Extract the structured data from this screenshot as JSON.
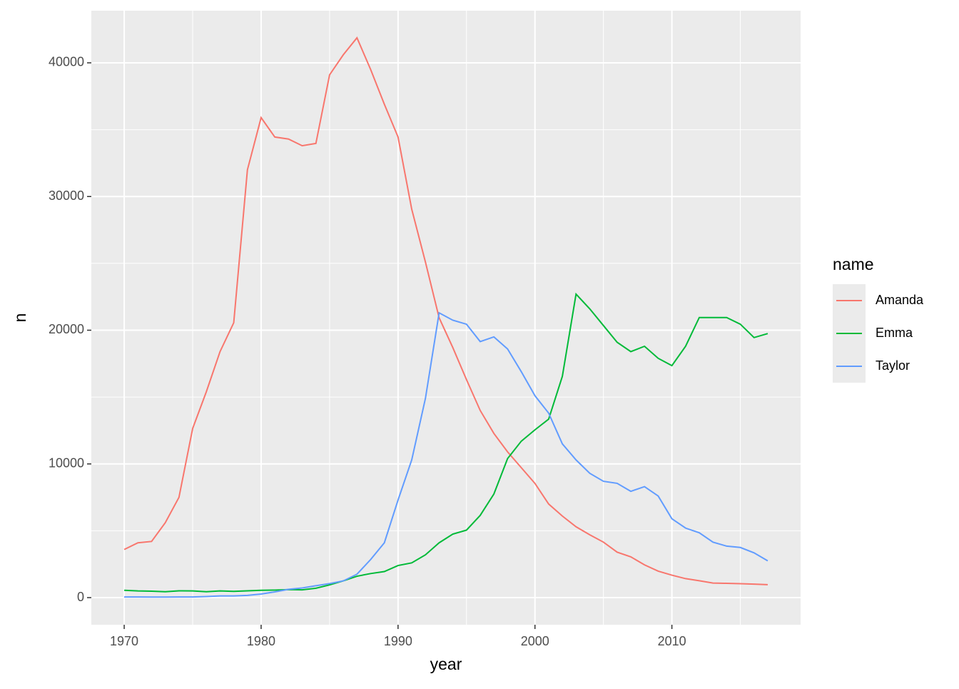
{
  "chart_data": {
    "type": "line",
    "x_label": "year",
    "y_label": "n",
    "legend_title": "name",
    "x": [
      1970,
      1971,
      1972,
      1973,
      1974,
      1975,
      1976,
      1977,
      1978,
      1979,
      1980,
      1981,
      1982,
      1983,
      1984,
      1985,
      1986,
      1987,
      1988,
      1989,
      1990,
      1991,
      1992,
      1993,
      1994,
      1995,
      1996,
      1997,
      1998,
      1999,
      2000,
      2001,
      2002,
      2003,
      2004,
      2005,
      2006,
      2007,
      2008,
      2009,
      2010,
      2011,
      2012,
      2013,
      2014,
      2015,
      2016,
      2017
    ],
    "series": [
      {
        "name": "Amanda",
        "color": "#f8766d",
        "values": [
          3600,
          4100,
          4200,
          5600,
          7500,
          12650,
          15400,
          18400,
          20560,
          32000,
          35900,
          34450,
          34300,
          33800,
          33970,
          39100,
          40600,
          41870,
          39500,
          36900,
          34450,
          29050,
          25100,
          20930,
          18700,
          16300,
          14000,
          12280,
          10900,
          9720,
          8540,
          7000,
          6100,
          5300,
          4700,
          4150,
          3400,
          3050,
          2450,
          1980,
          1680,
          1420,
          1260,
          1090,
          1070,
          1040,
          1010,
          970
        ]
      },
      {
        "name": "Emma",
        "color": "#00ba38",
        "values": [
          550,
          500,
          480,
          440,
          510,
          500,
          440,
          500,
          470,
          510,
          550,
          560,
          600,
          580,
          700,
          950,
          1250,
          1600,
          1800,
          1950,
          2400,
          2600,
          3200,
          4100,
          4750,
          5050,
          6150,
          7750,
          10400,
          11700,
          12550,
          13350,
          16550,
          22700,
          21600,
          20350,
          19100,
          18400,
          18800,
          17900,
          17350,
          18800,
          20950,
          20950,
          20950,
          20450,
          19450,
          19750
        ]
      },
      {
        "name": "Taylor",
        "color": "#619cff",
        "values": [
          50,
          50,
          40,
          40,
          50,
          50,
          80,
          130,
          130,
          170,
          270,
          430,
          620,
          720,
          890,
          1050,
          1250,
          1750,
          2850,
          4100,
          7300,
          10300,
          14900,
          21300,
          20750,
          20450,
          19150,
          19500,
          18600,
          16900,
          15100,
          13800,
          11500,
          10300,
          9300,
          8700,
          8550,
          7950,
          8300,
          7600,
          5900,
          5200,
          4850,
          4150,
          3850,
          3750,
          3350,
          2750
        ]
      }
    ],
    "xlim": [
      1967.6,
      2019.4
    ],
    "ylim": [
      -2029,
      43898
    ],
    "xticks": [
      1970,
      1980,
      1990,
      2000,
      2010
    ],
    "yticks": [
      0,
      10000,
      20000,
      30000,
      40000
    ],
    "grid": true,
    "legend": "right"
  }
}
